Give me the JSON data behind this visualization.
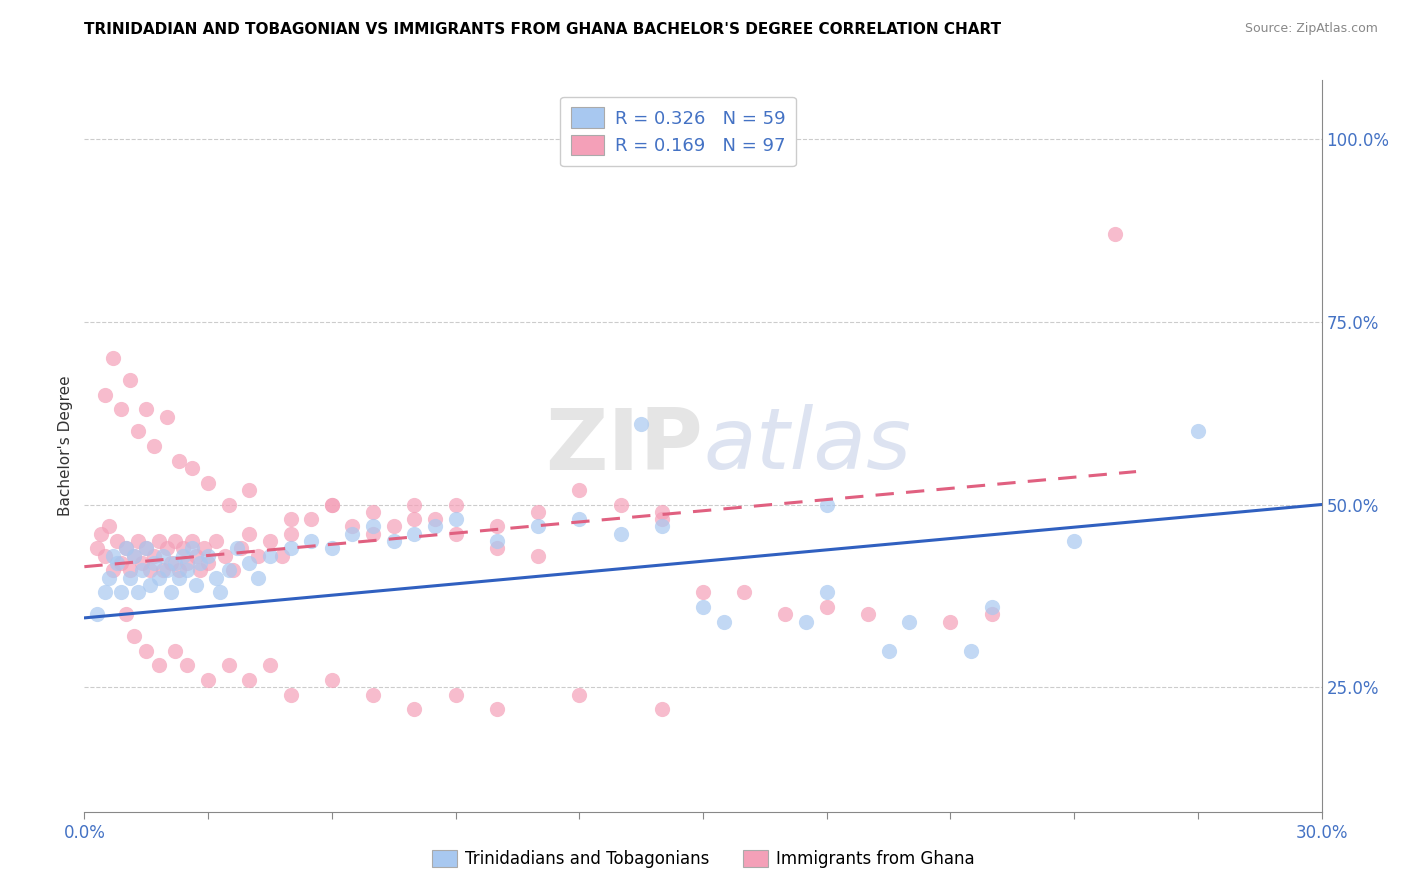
{
  "title": "TRINIDADIAN AND TOBAGONIAN VS IMMIGRANTS FROM GHANA BACHELOR'S DEGREE CORRELATION CHART",
  "source": "Source: ZipAtlas.com",
  "ylabel": "Bachelor's Degree",
  "blue_color": "#A8C8F0",
  "pink_color": "#F4A0B8",
  "blue_line_color": "#3060C0",
  "pink_line_color": "#E06080",
  "watermark": "ZIPatlas",
  "xmin": 0.0,
  "xmax": 0.3,
  "ymin": 0.08,
  "ymax": 1.08,
  "ytick_positions": [
    0.25,
    0.5,
    0.75,
    1.0
  ],
  "ytick_labels": [
    "25.0%",
    "50.0%",
    "75.0%",
    "100.0%"
  ],
  "blue_scatter_x": [
    0.003,
    0.005,
    0.006,
    0.007,
    0.008,
    0.009,
    0.01,
    0.011,
    0.012,
    0.013,
    0.014,
    0.015,
    0.016,
    0.017,
    0.018,
    0.019,
    0.02,
    0.021,
    0.022,
    0.023,
    0.024,
    0.025,
    0.026,
    0.027,
    0.028,
    0.03,
    0.032,
    0.033,
    0.035,
    0.037,
    0.04,
    0.042,
    0.045,
    0.05,
    0.055,
    0.06,
    0.065,
    0.07,
    0.075,
    0.08,
    0.085,
    0.09,
    0.1,
    0.11,
    0.12,
    0.13,
    0.14,
    0.15,
    0.18,
    0.2,
    0.22,
    0.24,
    0.135,
    0.155,
    0.175,
    0.195,
    0.215,
    0.18,
    0.27
  ],
  "blue_scatter_y": [
    0.35,
    0.38,
    0.4,
    0.43,
    0.42,
    0.38,
    0.44,
    0.4,
    0.43,
    0.38,
    0.41,
    0.44,
    0.39,
    0.42,
    0.4,
    0.43,
    0.41,
    0.38,
    0.42,
    0.4,
    0.43,
    0.41,
    0.44,
    0.39,
    0.42,
    0.43,
    0.4,
    0.38,
    0.41,
    0.44,
    0.42,
    0.4,
    0.43,
    0.44,
    0.45,
    0.44,
    0.46,
    0.47,
    0.45,
    0.46,
    0.47,
    0.48,
    0.45,
    0.47,
    0.48,
    0.46,
    0.47,
    0.36,
    0.38,
    0.34,
    0.36,
    0.45,
    0.61,
    0.34,
    0.34,
    0.3,
    0.3,
    0.5,
    0.6
  ],
  "pink_scatter_x": [
    0.003,
    0.004,
    0.005,
    0.006,
    0.007,
    0.008,
    0.009,
    0.01,
    0.011,
    0.012,
    0.013,
    0.014,
    0.015,
    0.016,
    0.017,
    0.018,
    0.019,
    0.02,
    0.021,
    0.022,
    0.023,
    0.024,
    0.025,
    0.026,
    0.027,
    0.028,
    0.029,
    0.03,
    0.032,
    0.034,
    0.036,
    0.038,
    0.04,
    0.042,
    0.045,
    0.048,
    0.05,
    0.055,
    0.06,
    0.065,
    0.07,
    0.075,
    0.08,
    0.085,
    0.09,
    0.1,
    0.11,
    0.12,
    0.13,
    0.14,
    0.005,
    0.007,
    0.009,
    0.011,
    0.013,
    0.015,
    0.017,
    0.02,
    0.023,
    0.026,
    0.03,
    0.035,
    0.04,
    0.05,
    0.06,
    0.07,
    0.08,
    0.09,
    0.1,
    0.11,
    0.01,
    0.012,
    0.015,
    0.018,
    0.022,
    0.025,
    0.03,
    0.035,
    0.04,
    0.045,
    0.05,
    0.06,
    0.07,
    0.08,
    0.09,
    0.1,
    0.12,
    0.14,
    0.15,
    0.17,
    0.19,
    0.22,
    0.25,
    0.16,
    0.18,
    0.21,
    0.14
  ],
  "pink_scatter_y": [
    0.44,
    0.46,
    0.43,
    0.47,
    0.41,
    0.45,
    0.42,
    0.44,
    0.41,
    0.43,
    0.45,
    0.42,
    0.44,
    0.41,
    0.43,
    0.45,
    0.41,
    0.44,
    0.42,
    0.45,
    0.41,
    0.44,
    0.42,
    0.45,
    0.43,
    0.41,
    0.44,
    0.42,
    0.45,
    0.43,
    0.41,
    0.44,
    0.46,
    0.43,
    0.45,
    0.43,
    0.46,
    0.48,
    0.5,
    0.47,
    0.49,
    0.47,
    0.5,
    0.48,
    0.5,
    0.47,
    0.49,
    0.52,
    0.5,
    0.49,
    0.65,
    0.7,
    0.63,
    0.67,
    0.6,
    0.63,
    0.58,
    0.62,
    0.56,
    0.55,
    0.53,
    0.5,
    0.52,
    0.48,
    0.5,
    0.46,
    0.48,
    0.46,
    0.44,
    0.43,
    0.35,
    0.32,
    0.3,
    0.28,
    0.3,
    0.28,
    0.26,
    0.28,
    0.26,
    0.28,
    0.24,
    0.26,
    0.24,
    0.22,
    0.24,
    0.22,
    0.24,
    0.22,
    0.38,
    0.35,
    0.35,
    0.35,
    0.87,
    0.38,
    0.36,
    0.34,
    0.48
  ],
  "blue_trend_x": [
    0.0,
    0.3
  ],
  "blue_trend_y": [
    0.345,
    0.5
  ],
  "pink_trend_x": [
    0.0,
    0.255
  ],
  "pink_trend_y": [
    0.415,
    0.545
  ]
}
